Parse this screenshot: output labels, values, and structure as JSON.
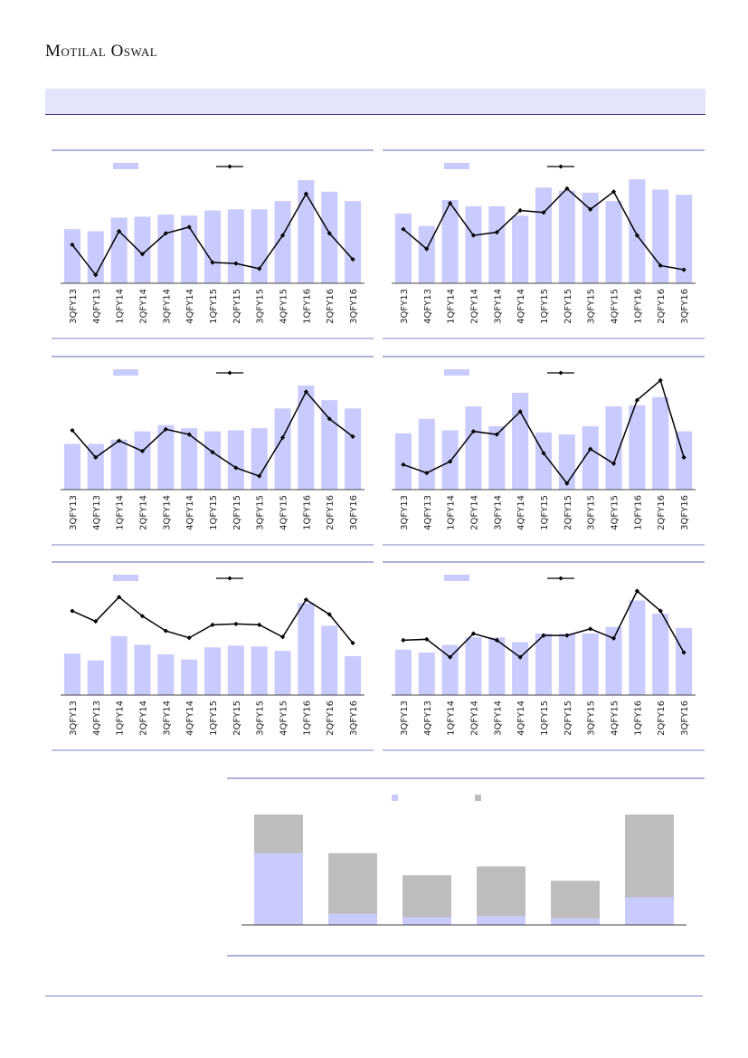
{
  "header": {
    "logo_text": "Motilal Oswal"
  },
  "colors": {
    "bar": "#c9cbfd",
    "line": "#000000",
    "gray": "#bdbdbd",
    "rule": "#7f82c4",
    "banner": "#e4e5fb"
  },
  "chart_data": [
    {
      "type": "bar+line",
      "categories": [
        "3QFY13",
        "4QFY13",
        "1QFY14",
        "2QFY14",
        "3QFY14",
        "4QFY14",
        "1QFY15",
        "2QFY15",
        "3QFY15",
        "4QFY15",
        "1QFY16",
        "2QFY16",
        "3QFY16"
      ],
      "series": [
        {
          "type": "bar",
          "values": [
            52,
            50,
            63,
            64,
            66,
            65,
            70,
            71,
            71,
            79,
            99,
            88,
            79
          ]
        },
        {
          "type": "line",
          "values": [
            37,
            8,
            50,
            28,
            48,
            54,
            20,
            19,
            14,
            46,
            86,
            48,
            23
          ]
        }
      ],
      "ylim": [
        0,
        100
      ]
    },
    {
      "type": "bar+line",
      "categories": [
        "3QFY13",
        "4QFY13",
        "1QFY14",
        "2QFY14",
        "3QFY14",
        "4QFY14",
        "1QFY15",
        "2QFY15",
        "3QFY15",
        "4QFY15",
        "1QFY16",
        "2QFY16",
        "3QFY16"
      ],
      "series": [
        {
          "type": "bar",
          "values": [
            67,
            55,
            80,
            74,
            74,
            65,
            92,
            89,
            87,
            79,
            100,
            90,
            85
          ]
        },
        {
          "type": "line",
          "values": [
            52,
            33,
            77,
            46,
            49,
            70,
            68,
            91,
            71,
            88,
            46,
            17,
            13
          ]
        }
      ],
      "ylim": [
        0,
        100
      ]
    },
    {
      "type": "bar+line",
      "categories": [
        "3QFY13",
        "4QFY13",
        "1QFY14",
        "2QFY14",
        "3QFY14",
        "4QFY14",
        "1QFY15",
        "2QFY15",
        "3QFY15",
        "4QFY15",
        "1QFY16",
        "2QFY16",
        "3QFY16"
      ],
      "series": [
        {
          "type": "bar",
          "values": [
            44,
            44,
            48,
            56,
            62,
            59,
            56,
            57,
            59,
            78,
            100,
            86,
            78
          ]
        },
        {
          "type": "line",
          "values": [
            57,
            31,
            47,
            37,
            58,
            53,
            36,
            21,
            13,
            50,
            94,
            68,
            51
          ]
        }
      ],
      "ylim": [
        0,
        100
      ]
    },
    {
      "type": "bar+line",
      "categories": [
        "3QFY13",
        "4QFY13",
        "1QFY14",
        "2QFY14",
        "3QFY14",
        "4QFY14",
        "1QFY15",
        "2QFY15",
        "3QFY15",
        "4QFY15",
        "1QFY16",
        "2QFY16",
        "3QFY16"
      ],
      "series": [
        {
          "type": "bar",
          "values": [
            54,
            68,
            57,
            80,
            61,
            93,
            55,
            53,
            61,
            80,
            81,
            89,
            56
          ]
        },
        {
          "type": "line",
          "values": [
            24,
            16,
            27,
            56,
            53,
            75,
            35,
            6,
            39,
            25,
            86,
            105,
            31
          ]
        }
      ],
      "ylim": [
        0,
        100
      ]
    },
    {
      "type": "bar+line",
      "categories": [
        "3QFY13",
        "4QFY13",
        "1QFY14",
        "2QFY14",
        "3QFY14",
        "4QFY14",
        "1QFY15",
        "2QFY15",
        "3QFY15",
        "4QFY15",
        "1QFY16",
        "2QFY16",
        "3QFY16"
      ],
      "series": [
        {
          "type": "bar",
          "values": [
            48,
            40,
            68,
            58,
            47,
            41,
            55,
            57,
            56,
            51,
            106,
            80,
            45
          ]
        },
        {
          "type": "line",
          "values": [
            97,
            85,
            113,
            91,
            74,
            66,
            81,
            82,
            81,
            67,
            110,
            93,
            60
          ]
        }
      ],
      "ylim": [
        0,
        120
      ]
    },
    {
      "type": "bar+line",
      "categories": [
        "3QFY13",
        "4QFY13",
        "1QFY14",
        "2QFY14",
        "3QFY14",
        "4QFY14",
        "1QFY15",
        "2QFY15",
        "3QFY15",
        "4QFY15",
        "1QFY16",
        "2QFY16",
        "3QFY16"
      ],
      "series": [
        {
          "type": "bar",
          "values": [
            48,
            45,
            53,
            61,
            61,
            56,
            65,
            65,
            65,
            72,
            100,
            86,
            71
          ]
        },
        {
          "type": "line",
          "values": [
            58,
            59,
            40,
            65,
            58,
            40,
            63,
            63,
            70,
            60,
            110,
            89,
            45
          ]
        }
      ],
      "ylim": [
        0,
        110
      ]
    },
    {
      "type": "stacked-bar",
      "categories": [
        "",
        "",
        "",
        "",
        "",
        ""
      ],
      "series": [
        {
          "color": "#c9cbfd",
          "values": [
            65,
            10,
            7,
            8,
            6,
            25
          ]
        },
        {
          "color": "#bdbdbd",
          "values": [
            35,
            55,
            38,
            45,
            34,
            75
          ]
        }
      ],
      "ylim": [
        0,
        100
      ]
    }
  ]
}
